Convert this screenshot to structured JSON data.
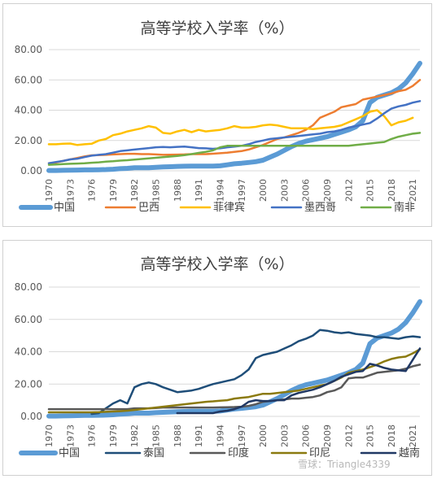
{
  "chart_data": [
    {
      "type": "line",
      "title": "高等学校入学率（%）",
      "ylim": [
        0,
        80
      ],
      "yticks": [
        "0.00",
        "20.00",
        "40.00",
        "60.00",
        "80.00"
      ],
      "grid": true,
      "legend_position": "bottom",
      "x": [
        1970,
        1971,
        1972,
        1973,
        1974,
        1975,
        1976,
        1977,
        1978,
        1979,
        1980,
        1981,
        1982,
        1983,
        1984,
        1985,
        1986,
        1987,
        1988,
        1989,
        1990,
        1991,
        1992,
        1993,
        1994,
        1995,
        1996,
        1997,
        1998,
        1999,
        2000,
        2001,
        2002,
        2003,
        2004,
        2005,
        2006,
        2007,
        2008,
        2009,
        2010,
        2011,
        2012,
        2013,
        2014,
        2015,
        2016,
        2017,
        2018,
        2019,
        2020,
        2021,
        2022
      ],
      "xticklabels": [
        "1970",
        "1973",
        "1976",
        "1979",
        "1982",
        "1985",
        "1988",
        "1991",
        "1994",
        "1997",
        "2000",
        "2003",
        "2006",
        "2009",
        "2012",
        "2015",
        "2018",
        "2021"
      ],
      "series": [
        {
          "name": "中国",
          "color": "#5b9bd5",
          "width": 6,
          "values": [
            0.2,
            0.2,
            0.3,
            0.4,
            0.5,
            0.6,
            0.6,
            0.7,
            0.8,
            1.0,
            1.4,
            1.6,
            2.0,
            2.0,
            2.0,
            2.3,
            2.5,
            2.7,
            2.9,
            3.0,
            3.1,
            3.1,
            3.1,
            3.1,
            3.3,
            3.9,
            4.6,
            5.0,
            5.5,
            6.0,
            7.0,
            9.0,
            11.0,
            13.5,
            16.0,
            18.0,
            19.5,
            20.5,
            21.5,
            22.5,
            24.0,
            25.5,
            27.0,
            29.0,
            33.0,
            45.0,
            48.5,
            50.0,
            51.5,
            54.0,
            58.0,
            64.0,
            71.0
          ]
        },
        {
          "name": "巴西",
          "color": "#ed7d31",
          "width": 2.5,
          "values": [
            5.0,
            5.5,
            6.5,
            7.5,
            8.5,
            9.5,
            10.2,
            10.3,
            10.5,
            10.8,
            11.0,
            11.2,
            11.2,
            11.0,
            11.0,
            10.8,
            10.5,
            10.6,
            10.7,
            10.8,
            11.0,
            11.0,
            11.0,
            11.3,
            11.6,
            12.0,
            12.5,
            13.0,
            14.0,
            15.5,
            17.0,
            19.0,
            21.0,
            22.0,
            23.5,
            25.0,
            27.0,
            30.0,
            35.0,
            37.0,
            39.0,
            42.0,
            43.0,
            44.0,
            47.0,
            48.0,
            49.0,
            50.0,
            51.0,
            52.5,
            53.5,
            56.0,
            60.0
          ]
        },
        {
          "name": "菲律宾",
          "color": "#ffc000",
          "width": 2.5,
          "values": [
            17.5,
            17.5,
            17.8,
            18.0,
            17.0,
            17.5,
            17.8,
            20.0,
            21.0,
            23.5,
            24.5,
            26.0,
            27.0,
            28.0,
            29.5,
            28.5,
            25.0,
            24.5,
            26.0,
            27.0,
            25.5,
            27.0,
            26.0,
            26.5,
            27.0,
            28.0,
            29.5,
            28.5,
            28.5,
            29.0,
            30.0,
            30.5,
            30.0,
            29.0,
            28.0,
            28.0,
            28.0,
            27.5,
            28.0,
            28.5,
            29.0,
            30.0,
            32.0,
            34.0,
            36.0,
            39.0,
            40.0,
            36.0,
            30.0,
            32.0,
            33.0,
            35.0,
            null
          ]
        },
        {
          "name": "墨西哥",
          "color": "#4472c4",
          "width": 2.5,
          "values": [
            5.0,
            5.8,
            6.5,
            7.5,
            8.0,
            9.0,
            10.0,
            10.5,
            11.0,
            12.0,
            13.0,
            13.5,
            14.0,
            14.5,
            15.0,
            15.5,
            15.7,
            15.5,
            15.8,
            16.0,
            15.5,
            15.0,
            14.8,
            14.5,
            14.8,
            15.5,
            16.0,
            16.5,
            17.5,
            19.0,
            20.0,
            21.0,
            21.5,
            22.0,
            22.5,
            23.0,
            23.5,
            24.0,
            24.5,
            25.5,
            26.0,
            27.0,
            28.5,
            29.5,
            30.5,
            31.5,
            34.5,
            38.0,
            41.0,
            42.5,
            43.5,
            45.0,
            46.0
          ]
        },
        {
          "name": "南非",
          "color": "#70ad47",
          "width": 2.5,
          "values": [
            4.0,
            4.2,
            4.4,
            4.6,
            4.8,
            5.0,
            5.3,
            5.6,
            6.0,
            6.3,
            6.7,
            7.0,
            7.4,
            7.8,
            8.2,
            8.6,
            9.0,
            9.4,
            9.8,
            10.3,
            11.0,
            11.8,
            12.5,
            13.5,
            15.5,
            16.5,
            16.5,
            16.5,
            16.5,
            16.5,
            16.5,
            16.5,
            16.5,
            16.5,
            16.5,
            16.5,
            16.5,
            16.5,
            16.5,
            16.5,
            16.5,
            16.5,
            16.5,
            17.0,
            17.5,
            18.0,
            18.5,
            19.0,
            21.0,
            22.5,
            23.5,
            24.5,
            25.0
          ]
        }
      ]
    },
    {
      "type": "line",
      "title": "高等学校入学率（%）",
      "ylim": [
        0,
        80
      ],
      "yticks": [
        "0.00",
        "20.00",
        "40.00",
        "60.00",
        "80.00"
      ],
      "grid": true,
      "legend_position": "bottom",
      "x": [
        1970,
        1971,
        1972,
        1973,
        1974,
        1975,
        1976,
        1977,
        1978,
        1979,
        1980,
        1981,
        1982,
        1983,
        1984,
        1985,
        1986,
        1987,
        1988,
        1989,
        1990,
        1991,
        1992,
        1993,
        1994,
        1995,
        1996,
        1997,
        1998,
        1999,
        2000,
        2001,
        2002,
        2003,
        2004,
        2005,
        2006,
        2007,
        2008,
        2009,
        2010,
        2011,
        2012,
        2013,
        2014,
        2015,
        2016,
        2017,
        2018,
        2019,
        2020,
        2021,
        2022
      ],
      "xticklabels": [
        "1970",
        "1973",
        "1976",
        "1979",
        "1982",
        "1985",
        "1988",
        "1991",
        "1994",
        "1997",
        "2000",
        "2003",
        "2006",
        "2009",
        "2012",
        "2015",
        "2018",
        "2021"
      ],
      "series": [
        {
          "name": "中国",
          "color": "#5b9bd5",
          "width": 6,
          "values": [
            0.2,
            0.2,
            0.3,
            0.4,
            0.5,
            0.6,
            0.6,
            0.7,
            0.8,
            1.0,
            1.4,
            1.6,
            2.0,
            2.0,
            2.0,
            2.3,
            2.5,
            2.7,
            2.9,
            3.0,
            3.1,
            3.1,
            3.1,
            3.1,
            3.3,
            3.9,
            4.6,
            5.0,
            5.5,
            6.0,
            7.0,
            9.0,
            11.0,
            13.5,
            16.0,
            18.0,
            19.5,
            20.5,
            21.5,
            22.5,
            24.0,
            25.5,
            27.0,
            29.0,
            33.0,
            45.0,
            48.5,
            50.0,
            51.5,
            54.0,
            58.0,
            64.0,
            71.0
          ]
        },
        {
          "name": "泰国",
          "color": "#1f4e79",
          "width": 2.5,
          "values": [
            null,
            null,
            null,
            null,
            null,
            null,
            1.5,
            2.0,
            5.0,
            8.0,
            10.0,
            8.0,
            18.0,
            20.0,
            21.0,
            20.0,
            18.0,
            16.5,
            15.0,
            15.5,
            16.0,
            17.0,
            18.5,
            20.0,
            21.0,
            22.0,
            23.0,
            25.5,
            29.0,
            36.0,
            38.0,
            39.0,
            40.0,
            42.0,
            44.0,
            46.5,
            48.0,
            50.0,
            53.5,
            53.0,
            52.0,
            51.5,
            52.0,
            51.0,
            50.5,
            50.0,
            49.0,
            49.0,
            48.5,
            48.0,
            49.0,
            49.5,
            49.0
          ]
        },
        {
          "name": "印度",
          "color": "#595959",
          "width": 2.5,
          "values": [
            4.5,
            4.5,
            4.5,
            4.5,
            4.5,
            4.5,
            4.5,
            4.5,
            4.5,
            4.5,
            4.5,
            4.5,
            5.0,
            5.0,
            5.0,
            5.2,
            5.5,
            5.5,
            5.5,
            5.5,
            5.5,
            5.5,
            5.5,
            5.5,
            5.6,
            5.7,
            5.8,
            6.0,
            6.5,
            7.5,
            9.0,
            9.5,
            10.0,
            10.5,
            11.0,
            11.0,
            11.5,
            12.0,
            13.0,
            15.0,
            16.0,
            18.0,
            23.5,
            24.0,
            24.0,
            25.5,
            27.0,
            27.5,
            28.0,
            28.5,
            29.5,
            31.0,
            32.0
          ]
        },
        {
          "name": "印尼",
          "color": "#8b7a0f",
          "width": 2.5,
          "values": [
            2.5,
            2.5,
            2.5,
            2.5,
            2.5,
            2.5,
            2.5,
            2.6,
            2.8,
            3.0,
            3.2,
            3.5,
            4.0,
            4.5,
            5.0,
            5.5,
            6.0,
            6.5,
            7.0,
            7.5,
            8.0,
            8.5,
            9.0,
            9.3,
            9.7,
            10.0,
            11.0,
            11.5,
            12.0,
            13.0,
            14.0,
            14.0,
            14.5,
            15.0,
            15.5,
            16.0,
            17.0,
            18.0,
            19.0,
            20.0,
            22.0,
            24.0,
            27.0,
            28.0,
            29.0,
            30.5,
            32.0,
            34.0,
            35.5,
            36.5,
            37.0,
            39.0,
            41.5
          ]
        },
        {
          "name": "越南",
          "color": "#203864",
          "width": 2.5,
          "values": [
            null,
            null,
            null,
            null,
            null,
            null,
            null,
            null,
            null,
            null,
            null,
            null,
            null,
            null,
            null,
            null,
            null,
            null,
            2.0,
            2.0,
            2.0,
            2.0,
            2.0,
            2.0,
            3.0,
            3.5,
            4.5,
            6.0,
            9.0,
            10.0,
            9.5,
            9.5,
            10.0,
            10.0,
            13.0,
            14.5,
            15.5,
            16.5,
            18.0,
            20.0,
            22.0,
            24.5,
            26.0,
            27.5,
            28.0,
            32.5,
            31.5,
            30.0,
            29.0,
            28.5,
            28.0,
            35.0,
            42.0
          ]
        }
      ]
    }
  ],
  "footer": {
    "watermark_text": "雪球：Triangle4339"
  }
}
